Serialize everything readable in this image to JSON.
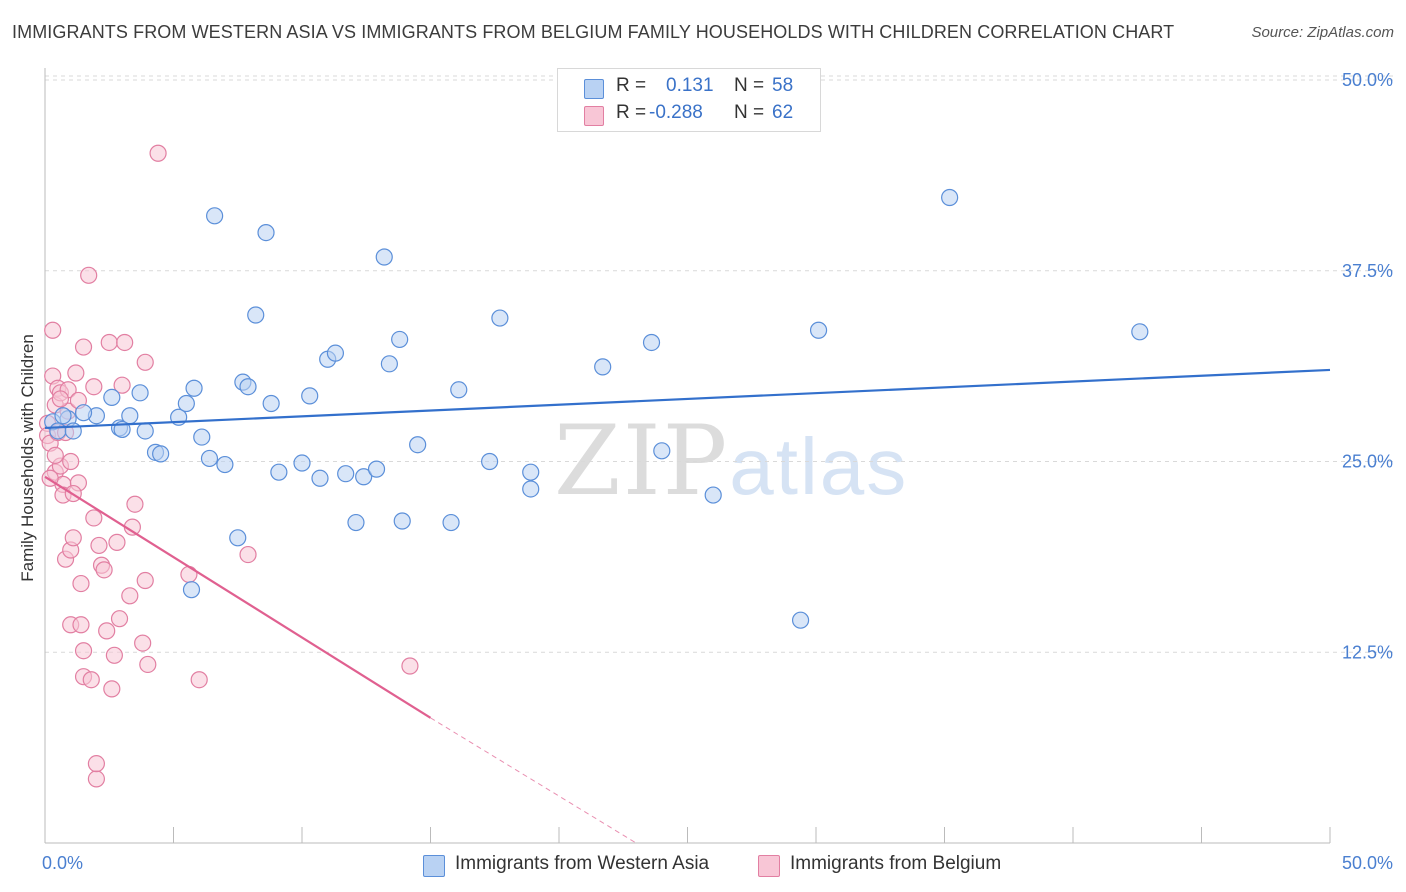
{
  "title": "IMMIGRANTS FROM WESTERN ASIA VS IMMIGRANTS FROM BELGIUM FAMILY HOUSEHOLDS WITH CHILDREN CORRELATION CHART",
  "source": "Source: ZipAtlas.com",
  "watermark": {
    "zip": "ZIP",
    "atlas": "atlas"
  },
  "colors": {
    "blue": "#5b8fd9",
    "blue_fill": "#b9d2f3",
    "blue_line": "#3370cc",
    "pink": "#e27fa2",
    "pink_fill": "#f8c6d6",
    "pink_line": "#e06090",
    "tick_text": "#4a7fd0",
    "grid": "#d9d9d9"
  },
  "legend": {
    "rows": [
      {
        "r_label": "R =",
        "r_value": "0.131",
        "n_label": "N =",
        "n_value": "58"
      },
      {
        "r_label": "R =",
        "r_value": "-0.288",
        "n_label": "N =",
        "n_value": "62"
      }
    ]
  },
  "bottom_legend": {
    "series1": "Immigrants from Western Asia",
    "series2": "Immigrants from Belgium"
  },
  "chart_data": {
    "type": "scatter",
    "xlabel": "",
    "ylabel": "Family Households with Children",
    "xlim": [
      0,
      50
    ],
    "ylim": [
      0,
      50
    ],
    "x_tick_labels": [
      "0.0%",
      "50.0%"
    ],
    "y_tick_labels": [
      "12.5%",
      "25.0%",
      "37.5%",
      "50.0%"
    ],
    "y_ticks": [
      12.5,
      25.0,
      37.5,
      50.0
    ],
    "grid": "horizontal dashed",
    "series": [
      {
        "name": "Immigrants from Western Asia",
        "R": 0.131,
        "N": 58,
        "trend": {
          "x": [
            0,
            50
          ],
          "y": [
            27.2,
            31.0
          ],
          "style": "solid"
        },
        "points": [
          [
            0.3,
            27.6
          ],
          [
            0.5,
            27.0
          ],
          [
            0.9,
            27.8
          ],
          [
            1.1,
            27.0
          ],
          [
            2.0,
            28.0
          ],
          [
            1.5,
            28.2
          ],
          [
            2.6,
            29.2
          ],
          [
            2.9,
            27.2
          ],
          [
            3.3,
            28.0
          ],
          [
            3.7,
            29.5
          ],
          [
            3.9,
            27.0
          ],
          [
            4.3,
            25.6
          ],
          [
            4.5,
            25.5
          ],
          [
            5.2,
            27.9
          ],
          [
            5.5,
            28.8
          ],
          [
            5.8,
            29.8
          ],
          [
            6.1,
            26.6
          ],
          [
            6.4,
            25.2
          ],
          [
            6.6,
            41.1
          ],
          [
            7.0,
            24.8
          ],
          [
            7.5,
            20.0
          ],
          [
            7.7,
            30.2
          ],
          [
            7.9,
            29.9
          ],
          [
            8.2,
            34.6
          ],
          [
            8.6,
            40.0
          ],
          [
            8.8,
            28.8
          ],
          [
            9.1,
            24.3
          ],
          [
            10.0,
            24.9
          ],
          [
            10.3,
            29.3
          ],
          [
            10.7,
            23.9
          ],
          [
            11.0,
            31.7
          ],
          [
            11.3,
            32.1
          ],
          [
            11.7,
            24.2
          ],
          [
            12.1,
            21.0
          ],
          [
            12.4,
            24.0
          ],
          [
            12.9,
            24.5
          ],
          [
            13.2,
            38.4
          ],
          [
            13.4,
            31.4
          ],
          [
            13.8,
            33.0
          ],
          [
            13.9,
            21.1
          ],
          [
            14.5,
            26.1
          ],
          [
            15.8,
            21.0
          ],
          [
            16.1,
            29.7
          ],
          [
            17.3,
            25.0
          ],
          [
            17.7,
            34.4
          ],
          [
            18.9,
            24.3
          ],
          [
            18.9,
            23.2
          ],
          [
            21.7,
            31.2
          ],
          [
            23.6,
            32.8
          ],
          [
            24.0,
            25.7
          ],
          [
            26.0,
            22.8
          ],
          [
            29.4,
            14.6
          ],
          [
            30.1,
            33.6
          ],
          [
            35.2,
            42.3
          ],
          [
            42.6,
            33.5
          ],
          [
            5.7,
            16.6
          ],
          [
            3.0,
            27.1
          ],
          [
            0.7,
            28.0
          ]
        ]
      },
      {
        "name": "Immigrants from Belgium",
        "R": -0.288,
        "N": 62,
        "trend": {
          "x": [
            0,
            15.0
          ],
          "y": [
            24.0,
            8.2
          ],
          "style": "solid",
          "extended": {
            "x": [
              15.0,
              23.0
            ],
            "y": [
              8.2,
              0.0
            ],
            "style": "dashed"
          }
        },
        "points": [
          [
            0.1,
            27.5
          ],
          [
            0.1,
            26.7
          ],
          [
            0.2,
            26.2
          ],
          [
            0.3,
            30.6
          ],
          [
            0.3,
            33.6
          ],
          [
            0.4,
            28.7
          ],
          [
            0.4,
            24.3
          ],
          [
            0.5,
            29.8
          ],
          [
            0.5,
            26.9
          ],
          [
            0.6,
            24.7
          ],
          [
            0.6,
            29.5
          ],
          [
            0.7,
            23.5
          ],
          [
            0.7,
            22.8
          ],
          [
            0.8,
            18.6
          ],
          [
            0.9,
            29.7
          ],
          [
            0.9,
            28.3
          ],
          [
            1.0,
            25.0
          ],
          [
            1.0,
            19.2
          ],
          [
            1.0,
            14.3
          ],
          [
            1.1,
            20.0
          ],
          [
            1.2,
            30.8
          ],
          [
            1.3,
            29.0
          ],
          [
            1.3,
            23.6
          ],
          [
            1.4,
            14.3
          ],
          [
            1.4,
            17.0
          ],
          [
            1.5,
            32.5
          ],
          [
            1.5,
            12.6
          ],
          [
            1.5,
            10.9
          ],
          [
            1.7,
            37.2
          ],
          [
            1.8,
            10.7
          ],
          [
            1.9,
            29.9
          ],
          [
            1.9,
            21.3
          ],
          [
            2.0,
            4.2
          ],
          [
            2.0,
            5.2
          ],
          [
            2.1,
            19.5
          ],
          [
            2.2,
            18.2
          ],
          [
            2.3,
            17.9
          ],
          [
            2.4,
            13.9
          ],
          [
            2.5,
            32.8
          ],
          [
            2.6,
            10.1
          ],
          [
            2.7,
            12.3
          ],
          [
            2.8,
            19.7
          ],
          [
            2.9,
            14.7
          ],
          [
            3.0,
            30.0
          ],
          [
            3.1,
            32.8
          ],
          [
            3.3,
            16.2
          ],
          [
            3.4,
            20.7
          ],
          [
            3.5,
            22.2
          ],
          [
            3.8,
            13.1
          ],
          [
            3.9,
            31.5
          ],
          [
            3.9,
            17.2
          ],
          [
            4.0,
            11.7
          ],
          [
            4.4,
            45.2
          ],
          [
            5.6,
            17.6
          ],
          [
            6.0,
            10.7
          ],
          [
            7.9,
            18.9
          ],
          [
            14.2,
            11.6
          ],
          [
            0.2,
            23.9
          ],
          [
            0.4,
            25.4
          ],
          [
            0.8,
            26.9
          ],
          [
            1.1,
            22.9
          ],
          [
            0.6,
            29.1
          ]
        ]
      }
    ]
  }
}
